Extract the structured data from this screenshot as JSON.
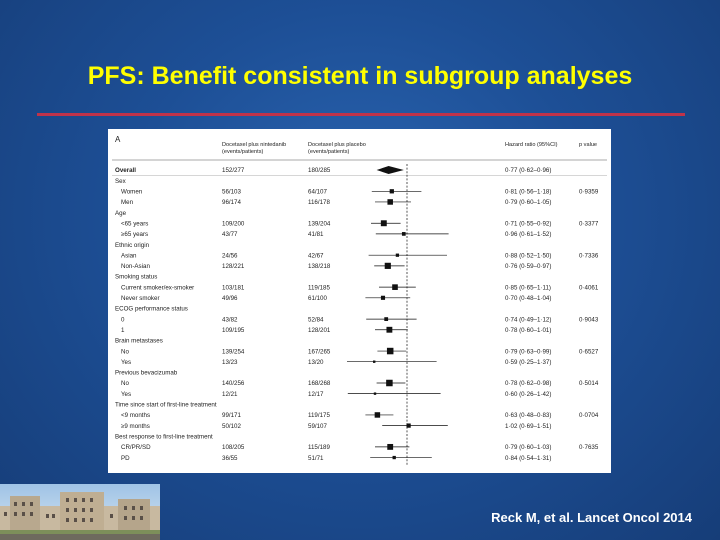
{
  "slide": {
    "title": "PFS: Benefit consistent in subgroup analyses",
    "citation": "Reck M, et al. Lancet Oncol 2014"
  },
  "chart_data": {
    "type": "forest",
    "panel_label": "A",
    "columns": {
      "group1": [
        "Docetaxel plus nintedanib",
        "(events/patients)"
      ],
      "group2": [
        "Docetaxel plus placebo",
        "(events/patients)"
      ],
      "hr": "Hazard ratio (95%CI)",
      "p": "p value"
    },
    "xlim": [
      0.2,
      2.2
    ],
    "reference_line": 1,
    "rows": [
      {
        "label": "Overall",
        "bold": true,
        "g1": "152/277",
        "g2": "180/285",
        "hr": "0·77 (0·62–0·96)",
        "p": "",
        "est": 0.77,
        "lo": 0.62,
        "hi": 0.96,
        "diamond": true
      },
      {
        "label": "Sex",
        "header": true
      },
      {
        "label": "Women",
        "indent": true,
        "g1": "56/103",
        "g2": "64/107",
        "hr": "0·81 (0·56–1·18)",
        "p": "0·9359",
        "est": 0.81,
        "lo": 0.56,
        "hi": 1.18
      },
      {
        "label": "Men",
        "indent": true,
        "g1": "96/174",
        "g2": "116/178",
        "hr": "0·79 (0·60–1·05)",
        "p": "",
        "est": 0.79,
        "lo": 0.6,
        "hi": 1.05
      },
      {
        "label": "Age",
        "header": true
      },
      {
        "label": "<65 years",
        "indent": true,
        "g1": "109/200",
        "g2": "139/204",
        "hr": "0·71 (0·55–0·92)",
        "p": "0·3377",
        "est": 0.71,
        "lo": 0.55,
        "hi": 0.92
      },
      {
        "label": "≥65 years",
        "indent": true,
        "g1": "43/77",
        "g2": "41/81",
        "hr": "0·96 (0·61–1·52)",
        "p": "",
        "est": 0.96,
        "lo": 0.61,
        "hi": 1.52
      },
      {
        "label": "Ethnic origin",
        "header": true
      },
      {
        "label": "Asian",
        "indent": true,
        "g1": "24/56",
        "g2": "42/67",
        "hr": "0·88 (0·52–1·50)",
        "p": "0·7336",
        "est": 0.88,
        "lo": 0.52,
        "hi": 1.5
      },
      {
        "label": "Non-Asian",
        "indent": true,
        "g1": "128/221",
        "g2": "138/218",
        "hr": "0·76 (0·59–0·97)",
        "p": "",
        "est": 0.76,
        "lo": 0.59,
        "hi": 0.97
      },
      {
        "label": "Smoking status",
        "header": true
      },
      {
        "label": "Current smoker/ex-smoker",
        "indent": true,
        "g1": "103/181",
        "g2": "119/185",
        "hr": "0·85 (0·65–1·11)",
        "p": "0·4061",
        "est": 0.85,
        "lo": 0.65,
        "hi": 1.11
      },
      {
        "label": "Never smoker",
        "indent": true,
        "g1": "49/96",
        "g2": "61/100",
        "hr": "0·70 (0·48–1·04)",
        "p": "",
        "est": 0.7,
        "lo": 0.48,
        "hi": 1.04
      },
      {
        "label": "ECOG performance status",
        "header": true
      },
      {
        "label": "0",
        "indent": true,
        "g1": "43/82",
        "g2": "52/84",
        "hr": "0·74 (0·49–1·12)",
        "p": "0·9043",
        "est": 0.74,
        "lo": 0.49,
        "hi": 1.12
      },
      {
        "label": "1",
        "indent": true,
        "g1": "109/195",
        "g2": "128/201",
        "hr": "0·78 (0·60–1·01)",
        "p": "",
        "est": 0.78,
        "lo": 0.6,
        "hi": 1.01
      },
      {
        "label": "Brain metastases",
        "header": true
      },
      {
        "label": "No",
        "indent": true,
        "g1": "139/254",
        "g2": "167/265",
        "hr": "0·79 (0·63–0·99)",
        "p": "0·6527",
        "est": 0.79,
        "lo": 0.63,
        "hi": 0.99
      },
      {
        "label": "Yes",
        "indent": true,
        "g1": "13/23",
        "g2": "13/20",
        "hr": "0·59 (0·25–1·37)",
        "p": "",
        "est": 0.59,
        "lo": 0.25,
        "hi": 1.37
      },
      {
        "label": "Previous bevacizumab",
        "header": true
      },
      {
        "label": "No",
        "indent": true,
        "g1": "140/256",
        "g2": "168/268",
        "hr": "0·78 (0·62–0·98)",
        "p": "0·5014",
        "est": 0.78,
        "lo": 0.62,
        "hi": 0.98
      },
      {
        "label": "Yes",
        "indent": true,
        "g1": "12/21",
        "g2": "12/17",
        "hr": "0·60 (0·26–1·42)",
        "p": "",
        "est": 0.6,
        "lo": 0.26,
        "hi": 1.42
      },
      {
        "label": "Time since start of first-line treatment",
        "header": true
      },
      {
        "label": "<9 months",
        "indent": true,
        "g1": "99/171",
        "g2": "119/175",
        "hr": "0·63 (0·48–0·83)",
        "p": "0·0704",
        "est": 0.63,
        "lo": 0.48,
        "hi": 0.83
      },
      {
        "label": "≥9 months",
        "indent": true,
        "g1": "50/102",
        "g2": "59/107",
        "hr": "1·02 (0·69–1·51)",
        "p": "",
        "est": 1.02,
        "lo": 0.69,
        "hi": 1.51
      },
      {
        "label": "Best response to first-line treatment",
        "header": true
      },
      {
        "label": "CR/PR/SD",
        "indent": true,
        "g1": "108/205",
        "g2": "115/189",
        "hr": "0·79 (0·60–1·03)",
        "p": "0·7635",
        "est": 0.79,
        "lo": 0.6,
        "hi": 1.03
      },
      {
        "label": "PD",
        "indent": true,
        "g1": "36/55",
        "g2": "51/71",
        "hr": "0·84 (0·54–1·31)",
        "p": "",
        "est": 0.84,
        "lo": 0.54,
        "hi": 1.31
      }
    ]
  }
}
